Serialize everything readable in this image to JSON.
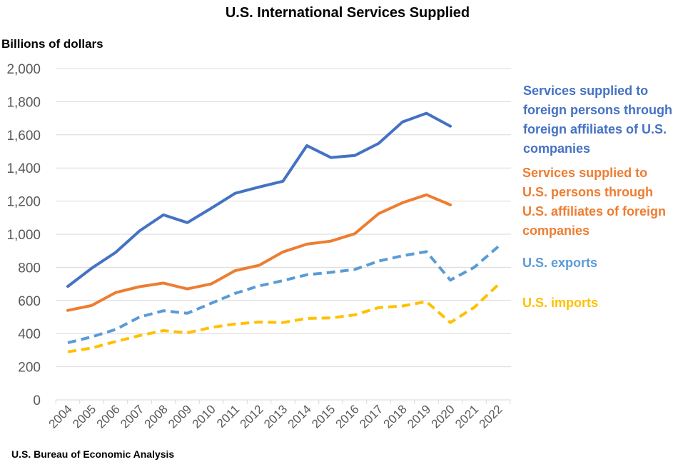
{
  "source_note": "U.S. Bureau of Economic Analysis",
  "colors": {
    "affiliates_foreign": "#4472C4",
    "affiliates_us": "#ED7D31",
    "exports": "#5B9BD5",
    "imports": "#FFC000",
    "axis_text": "#595959",
    "grid": "#D9D9D9"
  },
  "chart_data": {
    "type": "line",
    "title": "U.S. International Services Supplied",
    "ylabel": "Billions of dollars",
    "xlabel": "",
    "ylim": [
      0,
      2000
    ],
    "yticks": [
      0,
      200,
      400,
      600,
      800,
      1000,
      1200,
      1400,
      1600,
      1800,
      2000
    ],
    "yticks_labels": [
      "0",
      "200",
      "400",
      "600",
      "800",
      "1,000",
      "1,200",
      "1,400",
      "1,600",
      "1,800",
      "2,000"
    ],
    "grid": true,
    "legend_placement": "right",
    "categories": [
      "2004",
      "2005",
      "2006",
      "2007",
      "2008",
      "2009",
      "2010",
      "2011",
      "2012",
      "2013",
      "2014",
      "2015",
      "2016",
      "2017",
      "2018",
      "2019",
      "2020",
      "2021",
      "2022"
    ],
    "series": [
      {
        "name": "Services supplied to foreign persons through foreign affiliates of U.S. companies",
        "legend_lines": [
          "Services supplied to",
          "foreign persons through",
          "foreign affiliates of U.S.",
          "companies"
        ],
        "style": "solid",
        "color": "#4472C4",
        "values": [
          685,
          795,
          890,
          1020,
          1117,
          1070,
          1157,
          1247,
          1285,
          1320,
          1535,
          1463,
          1475,
          1548,
          1678,
          1730,
          1652,
          null,
          null
        ]
      },
      {
        "name": "Services supplied to U.S. persons through U.S. affiliates of foreign companies",
        "legend_lines": [
          "Services supplied to",
          "U.S. persons through",
          "U.S. affiliates of foreign",
          "companies"
        ],
        "style": "solid",
        "color": "#ED7D31",
        "values": [
          540,
          570,
          648,
          683,
          705,
          670,
          700,
          780,
          812,
          893,
          940,
          958,
          1003,
          1124,
          1190,
          1238,
          1177,
          null,
          null
        ]
      },
      {
        "name": "U.S. exports",
        "legend_lines": [
          "U.S. exports"
        ],
        "style": "dashed",
        "color": "#5B9BD5",
        "values": [
          345,
          380,
          425,
          500,
          538,
          523,
          583,
          643,
          688,
          720,
          755,
          770,
          787,
          838,
          870,
          895,
          723,
          800,
          925
        ]
      },
      {
        "name": "U.S. imports",
        "legend_lines": [
          "U.S. imports"
        ],
        "style": "dashed",
        "color": "#FFC000",
        "values": [
          290,
          313,
          352,
          388,
          418,
          405,
          437,
          458,
          470,
          467,
          492,
          495,
          513,
          557,
          567,
          593,
          467,
          558,
          695
        ]
      }
    ]
  }
}
